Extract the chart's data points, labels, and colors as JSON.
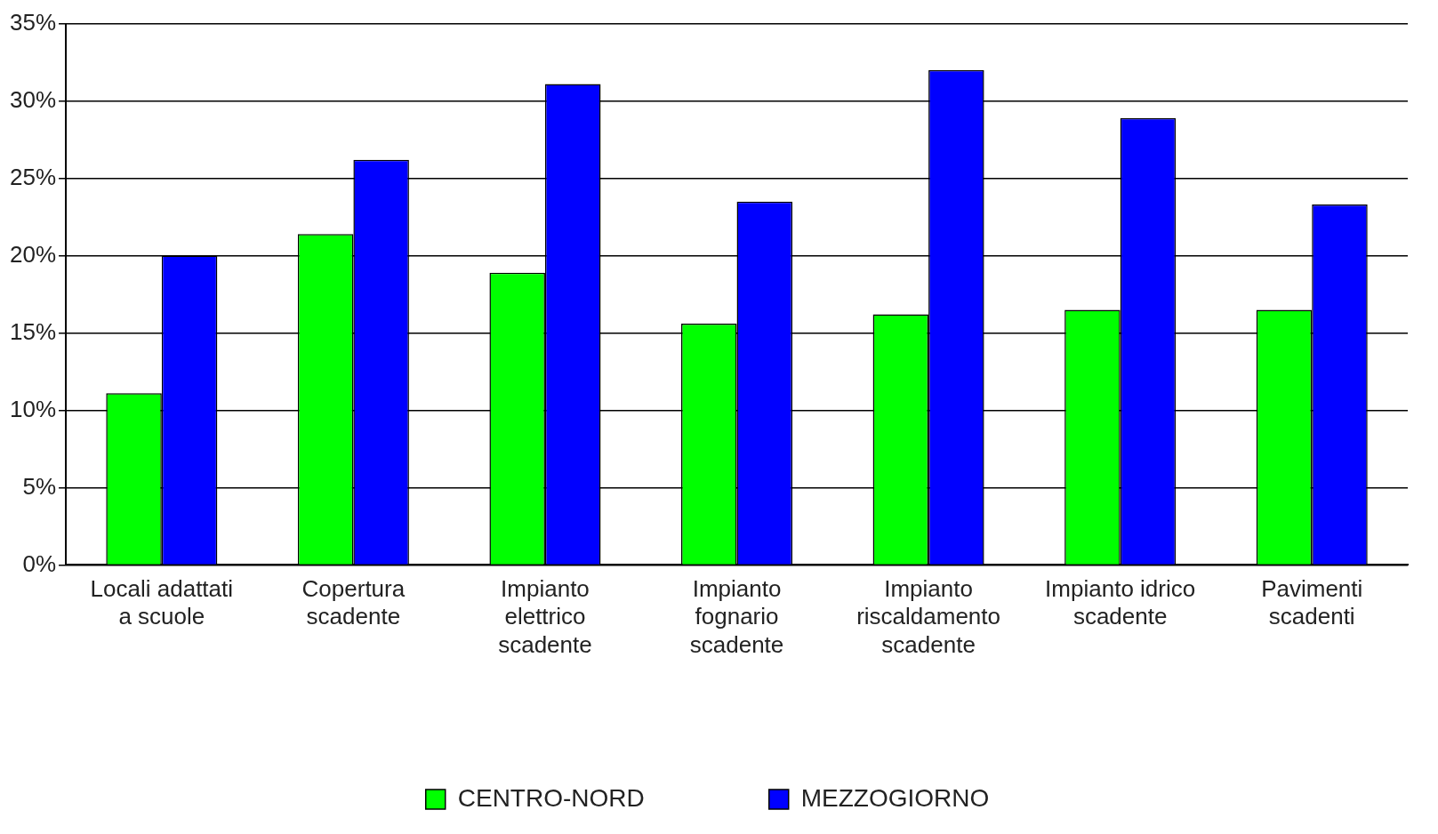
{
  "chart_data": {
    "type": "bar",
    "categories": [
      "Locali adattati a scuole",
      "Copertura scadente",
      "Impianto elettrico scadente",
      "Impianto fognario scadente",
      "Impianto riscaldamento scadente",
      "Impianto idrico scadente",
      "Pavimenti scadenti"
    ],
    "series": [
      {
        "name": "CENTRO-NORD",
        "color": "#00ff00",
        "values": [
          11.1,
          21.4,
          18.9,
          15.6,
          16.2,
          16.5,
          16.5
        ]
      },
      {
        "name": "MEZZOGIORNO",
        "color": "#0000ff",
        "values": [
          20.0,
          26.2,
          31.1,
          23.5,
          32.0,
          28.9,
          23.3
        ]
      }
    ],
    "ylim": [
      0,
      35
    ],
    "yticks": [
      {
        "value": 0,
        "label": "0%"
      },
      {
        "value": 5,
        "label": "5%"
      },
      {
        "value": 10,
        "label": "10%"
      },
      {
        "value": 15,
        "label": "15%"
      },
      {
        "value": 20,
        "label": "20%"
      },
      {
        "value": 25,
        "label": "25%"
      },
      {
        "value": 30,
        "label": "30%"
      },
      {
        "value": 35,
        "label": "35%"
      }
    ],
    "grid": "y",
    "legend": "bottom"
  }
}
